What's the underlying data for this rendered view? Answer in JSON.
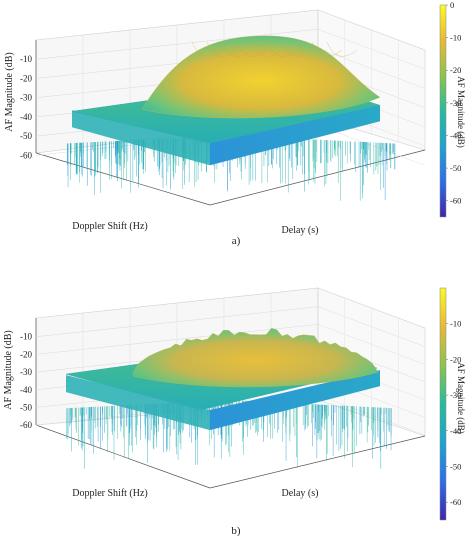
{
  "figure": {
    "panels": [
      {
        "label": "a)",
        "ylabel": "AF Magnitude (dB)",
        "xlabel_doppler": "Doppler Shift (Hz)",
        "xlabel_delay": "Delay (s)",
        "colorbar_label": "AF Magnitude (dB)"
      },
      {
        "label": "b)",
        "ylabel": "AF Magnitude (dB)",
        "xlabel_doppler": "Doppler Shift (Hz)",
        "xlabel_delay": "Delay (s)",
        "colorbar_label": "AF Magnitude (dB)"
      }
    ]
  },
  "chart_data": [
    {
      "type": "surface3d",
      "title": "",
      "zlabel": "AF Magnitude (dB)",
      "xlabel": "Doppler Shift (Hz)",
      "ylabel": "Delay (s)",
      "zlim": [
        -65,
        0
      ],
      "z_ticks": [
        -10,
        -20,
        -30,
        -40,
        -50,
        -60
      ],
      "colorbar": {
        "range": [
          -65,
          0
        ],
        "ticks": [
          0,
          -10,
          -20,
          -30,
          -40,
          -50,
          -60
        ]
      },
      "colormap": [
        "#3e26a8",
        "#2f6ee8",
        "#1ba4d0",
        "#27bb9b",
        "#8bc44c",
        "#e9b935",
        "#f9f926"
      ],
      "description_values": {
        "peak_db": 0,
        "sidelobe_plateau_db": -35,
        "noise_floor_db": -60
      },
      "grid": true,
      "surface": "smooth dome"
    },
    {
      "type": "surface3d",
      "title": "",
      "zlabel": "AF Magnitude (dB)",
      "xlabel": "Doppler Shift (Hz)",
      "ylabel": "Delay (s)",
      "zlim": [
        -65,
        0
      ],
      "z_ticks": [
        -10,
        -20,
        -30,
        -40,
        -50,
        -60
      ],
      "colorbar": {
        "range": [
          -65,
          0
        ],
        "ticks": [
          -10,
          -20,
          -30,
          -40,
          -50,
          -60
        ]
      },
      "colormap": [
        "#3e26a8",
        "#2f6ee8",
        "#1ba4d0",
        "#27bb9b",
        "#8bc44c",
        "#e9b935",
        "#f9f926"
      ],
      "description_values": {
        "peak_db": -8,
        "sidelobe_plateau_db": -30,
        "noise_floor_db": -60
      },
      "grid": true,
      "surface": "rough dome"
    }
  ]
}
